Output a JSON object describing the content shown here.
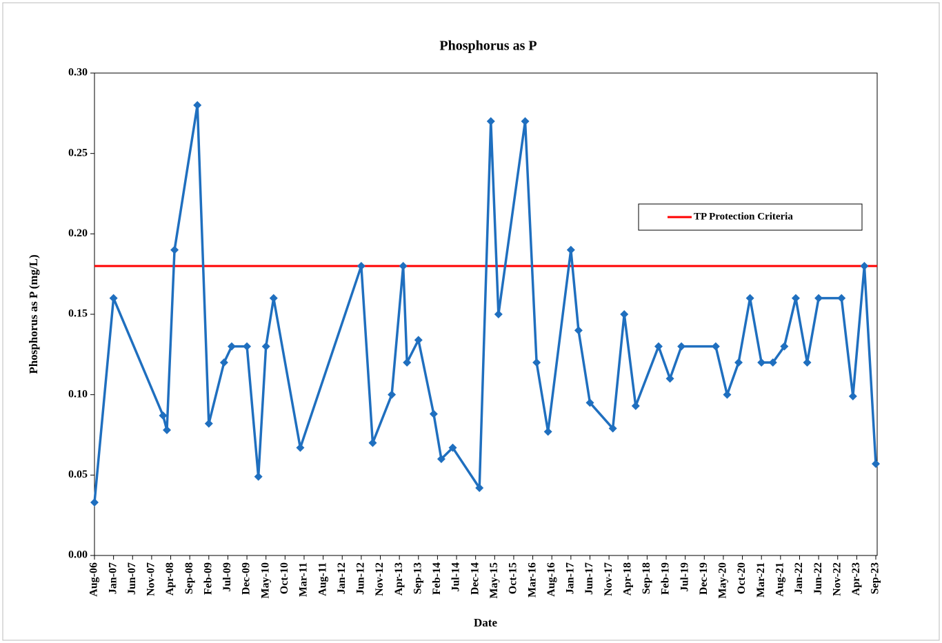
{
  "chart_data": {
    "type": "line",
    "title": "Phosphorus as P",
    "x_label": "Date",
    "y_label": "Phosphorus  as P (mg/L)",
    "x": [
      "2006-08",
      "2007-01",
      "2008-02",
      "2008-03",
      "2008-05",
      "2008-11",
      "2009-02",
      "2009-06",
      "2009-08",
      "2009-12",
      "2010-03",
      "2010-05",
      "2010-07",
      "2011-02",
      "2012-06",
      "2012-09",
      "2013-02",
      "2013-05",
      "2013-06",
      "2013-09",
      "2014-01",
      "2014-03",
      "2014-06",
      "2015-01",
      "2015-04",
      "2015-06",
      "2016-01",
      "2016-04",
      "2016-07",
      "2017-01",
      "2017-03",
      "2017-06",
      "2017-12",
      "2018-03",
      "2018-06",
      "2018-12",
      "2019-03",
      "2019-06",
      "2020-03",
      "2020-06",
      "2020-09",
      "2020-12",
      "2021-03",
      "2021-06",
      "2021-09",
      "2021-12",
      "2022-03",
      "2022-06",
      "2022-12",
      "2023-03",
      "2023-06",
      "2023-09"
    ],
    "series": [
      {
        "color": "#1f6fbf",
        "values": [
          0.033,
          0.16,
          0.087,
          0.078,
          0.19,
          0.28,
          0.082,
          0.12,
          0.13,
          0.13,
          0.049,
          0.13,
          0.16,
          0.067,
          0.18,
          0.07,
          0.1,
          0.18,
          0.12,
          0.134,
          0.088,
          0.06,
          0.067,
          0.042,
          0.27,
          0.15,
          0.27,
          0.12,
          0.077,
          0.19,
          0.14,
          0.095,
          0.079,
          0.15,
          0.093,
          0.13,
          0.11,
          0.13,
          0.13,
          0.1,
          0.12,
          0.16,
          0.12,
          0.12,
          0.13,
          0.16,
          0.12,
          0.16,
          0.16,
          0.099,
          0.18,
          0.057
        ]
      }
    ],
    "threshold": {
      "name": "TP Protection Criteria",
      "value": 0.18,
      "color": "#ff0000"
    },
    "xlim": [
      "2006-08",
      "2023-09"
    ],
    "xticks": [
      {
        "value": "2006-08",
        "label": "Aug-06"
      },
      {
        "value": "2007-01",
        "label": "Jan-07"
      },
      {
        "value": "2007-06",
        "label": "Jun-07"
      },
      {
        "value": "2007-11",
        "label": "Nov-07"
      },
      {
        "value": "2008-04",
        "label": "Apr-08"
      },
      {
        "value": "2008-09",
        "label": "Sep-08"
      },
      {
        "value": "2009-02",
        "label": "Feb-09"
      },
      {
        "value": "2009-07",
        "label": "Jul-09"
      },
      {
        "value": "2009-12",
        "label": "Dec-09"
      },
      {
        "value": "2010-05",
        "label": "May-10"
      },
      {
        "value": "2010-10",
        "label": "Oct-10"
      },
      {
        "value": "2011-03",
        "label": "Mar-11"
      },
      {
        "value": "2011-08",
        "label": "Aug-11"
      },
      {
        "value": "2012-01",
        "label": "Jan-12"
      },
      {
        "value": "2012-06",
        "label": "Jun-12"
      },
      {
        "value": "2012-11",
        "label": "Nov-12"
      },
      {
        "value": "2013-04",
        "label": "Apr-13"
      },
      {
        "value": "2013-09",
        "label": "Sep-13"
      },
      {
        "value": "2014-02",
        "label": "Feb-14"
      },
      {
        "value": "2014-07",
        "label": "Jul-14"
      },
      {
        "value": "2014-12",
        "label": "Dec-14"
      },
      {
        "value": "2015-05",
        "label": "May-15"
      },
      {
        "value": "2015-10",
        "label": "Oct-15"
      },
      {
        "value": "2016-03",
        "label": "Mar-16"
      },
      {
        "value": "2016-08",
        "label": "Aug-16"
      },
      {
        "value": "2017-01",
        "label": "Jan-17"
      },
      {
        "value": "2017-06",
        "label": "Jun-17"
      },
      {
        "value": "2017-11",
        "label": "Nov-17"
      },
      {
        "value": "2018-04",
        "label": "Apr-18"
      },
      {
        "value": "2018-09",
        "label": "Sep-18"
      },
      {
        "value": "2019-02",
        "label": "Feb-19"
      },
      {
        "value": "2019-07",
        "label": "Jul-19"
      },
      {
        "value": "2019-12",
        "label": "Dec-19"
      },
      {
        "value": "2020-05",
        "label": "May-20"
      },
      {
        "value": "2020-10",
        "label": "Oct-20"
      },
      {
        "value": "2021-03",
        "label": "Mar-21"
      },
      {
        "value": "2021-08",
        "label": "Aug-21"
      },
      {
        "value": "2022-01",
        "label": "Jan-22"
      },
      {
        "value": "2022-06",
        "label": "Jun-22"
      },
      {
        "value": "2022-11",
        "label": "Nov-22"
      },
      {
        "value": "2023-04",
        "label": "Apr-23"
      },
      {
        "value": "2023-09",
        "label": "Sep-23"
      }
    ],
    "ylim": [
      0,
      0.3
    ],
    "yticks": [
      {
        "value": 0,
        "label": "0.00"
      },
      {
        "value": 0.05,
        "label": "0.05"
      },
      {
        "value": 0.1,
        "label": "0.10"
      },
      {
        "value": 0.15,
        "label": "0.15"
      },
      {
        "value": 0.2,
        "label": "0.20"
      },
      {
        "value": 0.25,
        "label": "0.25"
      },
      {
        "value": 0.3,
        "label": "0.30"
      }
    ],
    "grid": false,
    "legend": "upper right"
  }
}
